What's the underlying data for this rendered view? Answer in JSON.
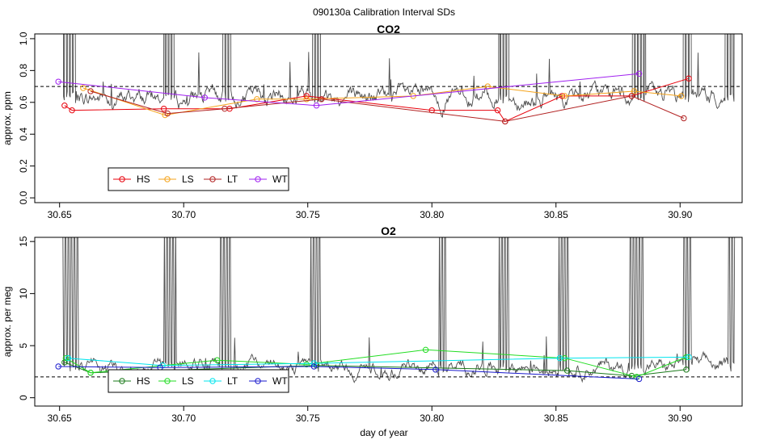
{
  "figure_title": "090130a   Calibration Interval SDs",
  "xlabel": "day of year",
  "colors": {
    "trace": "#4d4d4d",
    "reference_line": "#000000",
    "HS_co2": "#e8000b",
    "LS_co2": "#f5a31a",
    "LT_co2": "#b22222",
    "WT_co2": "#a020f0",
    "HS_o2": "#1a7a1a",
    "LS_o2": "#22dd22",
    "LT_o2": "#00e5ee",
    "WT_o2": "#1a1acd"
  },
  "chart_data": [
    {
      "type": "line",
      "title": "CO2",
      "ylabel": "approx. ppm",
      "xlim": [
        30.64,
        30.925
      ],
      "ylim": [
        -0.03,
        1.03
      ],
      "xticks": [
        "30.65",
        "30.70",
        "30.75",
        "30.80",
        "30.85",
        "30.90"
      ],
      "yticks": [
        "0.0",
        "0.2",
        "0.4",
        "0.6",
        "0.8",
        "1.0"
      ],
      "reference_line": 0.7,
      "legend": [
        "HS",
        "LS",
        "LT",
        "WT"
      ],
      "trace_baseline": 0.63,
      "trace_noise": 0.08,
      "trace_x_range": [
        30.651,
        30.922
      ],
      "spikes": [
        [
          30.651,
          30.657
        ],
        [
          30.692,
          30.696
        ],
        [
          30.716,
          30.719
        ],
        [
          30.752,
          30.755
        ],
        [
          30.827,
          30.831
        ],
        [
          30.881,
          30.886
        ],
        [
          30.901,
          30.905
        ],
        [
          30.918,
          30.922
        ]
      ],
      "series": [
        {
          "name": "HS",
          "x": [
            30.652,
            30.655,
            30.692,
            30.7185,
            30.7495,
            30.8,
            30.8265,
            30.8295,
            30.8525,
            30.8805,
            30.9035
          ],
          "y": [
            0.58,
            0.55,
            0.56,
            0.56,
            0.64,
            0.55,
            0.55,
            0.48,
            0.64,
            0.64,
            0.75
          ]
        },
        {
          "name": "LS",
          "x": [
            30.6595,
            30.6925,
            30.7295,
            30.7495,
            30.7925,
            30.8225,
            30.8535,
            30.8815,
            30.9005
          ],
          "y": [
            0.69,
            0.52,
            0.62,
            0.62,
            0.64,
            0.7,
            0.64,
            0.67,
            0.64
          ]
        },
        {
          "name": "LT",
          "x": [
            30.6625,
            30.6935,
            30.7165,
            30.7555,
            30.8295,
            30.8805,
            30.9015
          ],
          "y": [
            0.67,
            0.53,
            0.56,
            0.62,
            0.48,
            0.64,
            0.5
          ]
        },
        {
          "name": "WT",
          "x": [
            30.6495,
            30.7085,
            30.7535,
            30.8835
          ],
          "y": [
            0.73,
            0.63,
            0.58,
            0.78
          ]
        }
      ]
    },
    {
      "type": "line",
      "title": "O2",
      "ylabel": "approx. per meg",
      "xlim": [
        30.64,
        30.925
      ],
      "ylim": [
        -0.8,
        15.4
      ],
      "xticks": [
        "30.65",
        "30.70",
        "30.75",
        "30.80",
        "30.85",
        "30.90"
      ],
      "yticks": [
        "0",
        "5",
        "10",
        "15"
      ],
      "reference_line": 2.0,
      "legend": [
        "HS",
        "LS",
        "LT",
        "WT"
      ],
      "trace_baseline": 3.0,
      "trace_noise": 1.0,
      "trace_x_range": [
        30.651,
        30.922
      ],
      "spikes": [
        [
          30.651,
          30.658
        ],
        [
          30.692,
          30.697
        ],
        [
          30.714,
          30.719
        ],
        [
          30.751,
          30.755
        ],
        [
          30.803,
          30.806
        ],
        [
          30.827,
          30.831
        ],
        [
          30.851,
          30.855
        ],
        [
          30.879,
          30.885
        ],
        [
          30.901,
          30.905
        ],
        [
          30.919,
          30.922
        ]
      ],
      "series": [
        {
          "name": "HS",
          "x": [
            30.652,
            30.6625,
            30.7535,
            30.8545,
            30.8805,
            30.9025
          ],
          "y": [
            3.4,
            2.4,
            3.1,
            2.6,
            2.1,
            2.7
          ]
        },
        {
          "name": "LS",
          "x": [
            30.6525,
            30.6625,
            30.7135,
            30.7495,
            30.7975,
            30.8535,
            30.8825,
            30.9025
          ],
          "y": [
            3.8,
            2.4,
            3.6,
            3.2,
            4.6,
            3.8,
            2.0,
            3.9
          ]
        },
        {
          "name": "LT",
          "x": [
            30.6535,
            30.6915,
            30.7525,
            30.8515,
            30.9035
          ],
          "y": [
            3.8,
            3.1,
            3.3,
            3.8,
            3.9
          ]
        },
        {
          "name": "WT",
          "x": [
            30.6495,
            30.6905,
            30.7525,
            30.8015,
            30.8835
          ],
          "y": [
            3.0,
            2.9,
            3.0,
            2.7,
            1.8
          ]
        }
      ]
    }
  ]
}
